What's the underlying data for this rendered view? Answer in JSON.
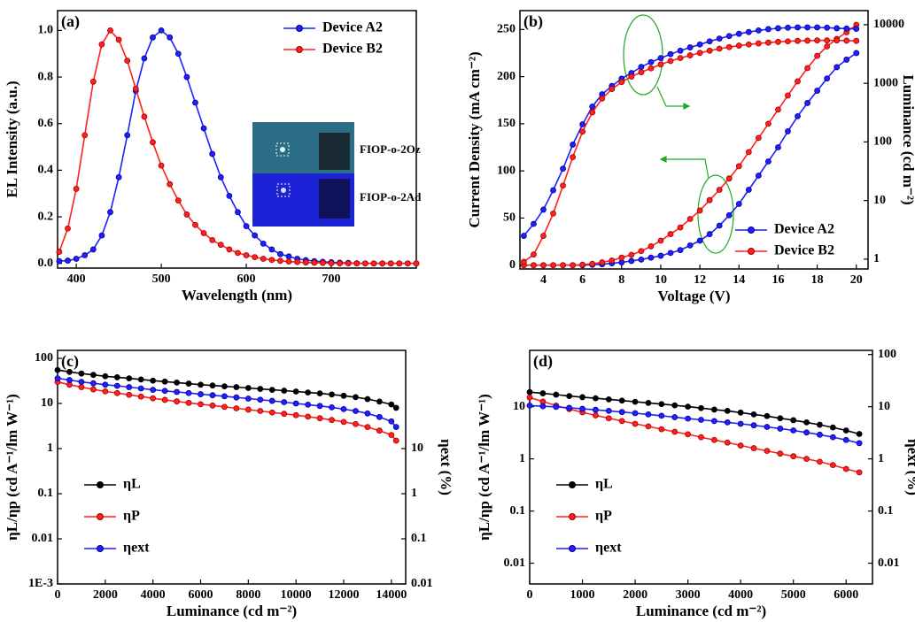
{
  "chart_data": [
    {
      "type": "line",
      "label": "(a)",
      "x_label": "Wavelength (nm)",
      "y_label": "EL Intensity (a.u.)",
      "annotations": [
        "FIOP-o-2Oz",
        "FIOP-o-2Ad"
      ],
      "legend": "upper right",
      "x": [
        380,
        390,
        400,
        410,
        420,
        430,
        440,
        450,
        460,
        470,
        480,
        490,
        500,
        510,
        520,
        530,
        540,
        550,
        560,
        570,
        580,
        590,
        600,
        610,
        620,
        630,
        640,
        650,
        660,
        670,
        680,
        690,
        700,
        710,
        720,
        730,
        740,
        750,
        760,
        770,
        780,
        790,
        800
      ],
      "series": [
        {
          "name": "Device A2",
          "color": "#1f1fff",
          "values": [
            0.01,
            0.012,
            0.02,
            0.035,
            0.06,
            0.12,
            0.22,
            0.37,
            0.55,
            0.74,
            0.88,
            0.97,
            1.0,
            0.97,
            0.9,
            0.8,
            0.69,
            0.58,
            0.47,
            0.37,
            0.29,
            0.22,
            0.16,
            0.12,
            0.085,
            0.06,
            0.04,
            0.03,
            0.02,
            0.014,
            0.01,
            0.007,
            0.005,
            0.003,
            0.002,
            0.001,
            0,
            0,
            0,
            0,
            0,
            0,
            0
          ]
        },
        {
          "name": "Device B2",
          "color": "#ff2020",
          "values": [
            0.05,
            0.15,
            0.32,
            0.55,
            0.78,
            0.94,
            1.0,
            0.96,
            0.87,
            0.75,
            0.63,
            0.52,
            0.42,
            0.34,
            0.27,
            0.21,
            0.165,
            0.13,
            0.1,
            0.08,
            0.06,
            0.045,
            0.035,
            0.027,
            0.02,
            0.015,
            0.011,
            0.008,
            0.006,
            0.004,
            0.003,
            0.002,
            0.001,
            0,
            0,
            0,
            0,
            0,
            0,
            0,
            0,
            0,
            0
          ]
        }
      ],
      "xlim": [
        378,
        800
      ],
      "xticks": [
        400,
        500,
        600,
        700
      ],
      "ylim": [
        -0.02,
        1.085
      ],
      "yticks": [
        {
          "value": 0,
          "label": "0.0"
        },
        0.2,
        0.4,
        0.6,
        0.8,
        {
          "value": 1,
          "label": "1.0"
        }
      ]
    },
    {
      "type": "line",
      "label": "(b)",
      "x_label": "Voltage (V)",
      "y_label": "Current Density (mA cm⁻²)",
      "y2_label": "Luminance (cd m⁻²)",
      "legend": "lower right",
      "x": [
        3,
        3.5,
        4,
        4.5,
        5,
        5.5,
        6,
        6.5,
        7,
        7.5,
        8,
        8.5,
        9,
        9.5,
        10,
        10.5,
        11,
        11.5,
        12,
        12.5,
        13,
        13.5,
        14,
        14.5,
        15,
        15.5,
        16,
        16.5,
        17,
        17.5,
        18,
        18.5,
        19,
        19.5,
        20
      ],
      "series": [
        {
          "name": "Device A2",
          "color": "#1f1fff",
          "values": [
            0,
            0,
            0,
            0,
            0,
            0,
            0,
            0.5,
            1,
            2,
            3,
            4.5,
            6,
            8,
            10,
            13,
            16,
            21,
            26,
            33,
            42,
            53,
            65,
            80,
            95,
            110,
            125,
            142,
            158,
            172,
            185,
            198,
            210,
            218,
            225
          ]
        },
        {
          "name": "Device B2",
          "color": "#ff2020",
          "values": [
            0,
            0,
            0,
            0,
            0,
            0,
            0.5,
            1.5,
            3,
            5,
            8,
            11,
            15,
            20,
            26,
            33,
            40,
            49,
            58,
            69,
            80,
            92,
            105,
            120,
            135,
            150,
            165,
            180,
            195,
            209,
            222,
            232,
            240,
            247,
            255
          ]
        },
        {
          "color": "#1f1fff",
          "axis": "y2",
          "values": [
            2.5,
            4,
            7,
            15,
            35,
            90,
            200,
            400,
            650,
            900,
            1200,
            1500,
            1900,
            2300,
            2700,
            3150,
            3600,
            4100,
            4600,
            5200,
            5800,
            6400,
            7000,
            7500,
            8000,
            8400,
            8700,
            8900,
            9000,
            9000,
            9000,
            8900,
            8700,
            8600,
            8500
          ]
        },
        {
          "color": "#ff2020",
          "axis": "y2",
          "values": [
            0.9,
            1.2,
            2.5,
            6,
            18,
            55,
            150,
            320,
            550,
            800,
            1050,
            1300,
            1550,
            1800,
            2100,
            2400,
            2700,
            3000,
            3300,
            3600,
            3900,
            4150,
            4400,
            4600,
            4800,
            4950,
            5100,
            5200,
            5300,
            5350,
            5400,
            5400,
            5400,
            5350,
            5300
          ]
        }
      ],
      "xlim": [
        2.8,
        20.6
      ],
      "xticks": [
        4,
        6,
        8,
        10,
        12,
        14,
        16,
        18,
        20
      ],
      "ylim": [
        -4,
        270
      ],
      "yticks": [
        0,
        50,
        100,
        150,
        200,
        250
      ],
      "y2lim": [
        0.68,
        17400
      ],
      "y2ticks": [
        1,
        10,
        100,
        1000,
        10000
      ],
      "y2_log": true
    },
    {
      "type": "line",
      "label": "(c)",
      "x_label": "Luminance (cd m⁻²)",
      "y_label": "ηL/ηp (cd A⁻¹/lm W⁻¹)",
      "y2_label": "ηext (%)",
      "legend": "lower left",
      "x": [
        0,
        500,
        1000,
        1500,
        2000,
        2500,
        3000,
        3500,
        4000,
        4500,
        5000,
        5500,
        6000,
        6500,
        7000,
        7500,
        8000,
        8500,
        9000,
        9500,
        10000,
        10500,
        11000,
        11500,
        12000,
        12500,
        13000,
        13500,
        14000,
        14200
      ],
      "series": [
        {
          "name": "ηL",
          "color": "#000000",
          "values": [
            55,
            50,
            46,
            43,
            40,
            38,
            36,
            34,
            32,
            30.5,
            29,
            27.5,
            26,
            25,
            24,
            23,
            22,
            21,
            20,
            19.2,
            18.4,
            17.5,
            16.7,
            15.8,
            14.8,
            13.8,
            12.5,
            11,
            9.5,
            8
          ]
        },
        {
          "name": "ηP",
          "color": "#ff2020",
          "values": [
            30,
            26,
            23,
            20.5,
            18.5,
            17,
            15.5,
            14.2,
            13,
            12,
            11.1,
            10.3,
            9.6,
            9,
            8.4,
            7.8,
            7.3,
            6.8,
            6.3,
            5.9,
            5.5,
            5.1,
            4.7,
            4.3,
            3.9,
            3.5,
            3.0,
            2.5,
            2.0,
            1.5
          ]
        },
        {
          "name": "ηext",
          "color": "#1f1fff",
          "axis": "y2",
          "values": [
            360,
            330,
            300,
            280,
            260,
            245,
            230,
            215,
            200,
            190,
            180,
            170,
            160,
            152,
            144,
            136,
            128,
            121,
            114,
            107,
            100,
            94,
            88,
            82,
            75,
            68,
            60,
            50,
            40,
            30
          ]
        }
      ],
      "xlim": [
        0,
        14600
      ],
      "xticks": [
        0,
        2000,
        4000,
        6000,
        8000,
        10000,
        12000,
        14000
      ],
      "ylim": [
        0.001,
        150
      ],
      "yticks": [
        {
          "value": 0.001,
          "label": "1E-3"
        },
        0.01,
        0.1,
        1,
        10,
        100
      ],
      "y_log": true,
      "y2lim": [
        0.01,
        1500
      ],
      "y2ticks": [
        0.01,
        0.1,
        1,
        10
      ],
      "y2_log": true
    },
    {
      "type": "line",
      "label": "(d)",
      "x_label": "Luminance (cd m⁻²)",
      "y_label": "ηL/ηp (cd A⁻¹/lm W⁻¹)",
      "y2_label": "ηext (%)",
      "legend": "lower left",
      "x": [
        0,
        250,
        500,
        750,
        1000,
        1250,
        1500,
        1750,
        2000,
        2250,
        2500,
        2750,
        3000,
        3250,
        3500,
        3750,
        4000,
        4250,
        4500,
        4750,
        5000,
        5250,
        5500,
        5750,
        6000,
        6250
      ],
      "series": [
        {
          "name": "ηL",
          "color": "#000000",
          "values": [
            19,
            18,
            17,
            16,
            15.2,
            14.5,
            13.8,
            13.1,
            12.4,
            11.8,
            11.2,
            10.6,
            10,
            9.4,
            8.8,
            8.3,
            7.7,
            7.1,
            6.6,
            6.0,
            5.5,
            5.0,
            4.5,
            4.0,
            3.5,
            3.0
          ]
        },
        {
          "name": "ηP",
          "color": "#ff2020",
          "values": [
            15,
            12.5,
            10.5,
            9,
            7.8,
            6.8,
            6.0,
            5.3,
            4.7,
            4.2,
            3.7,
            3.3,
            2.95,
            2.6,
            2.3,
            2.05,
            1.8,
            1.6,
            1.42,
            1.26,
            1.12,
            1.0,
            0.88,
            0.76,
            0.64,
            0.55
          ]
        },
        {
          "name": "ηext",
          "color": "#1f1fff",
          "axis": "y2",
          "values": [
            10.5,
            10.2,
            9.9,
            9.5,
            9.1,
            8.7,
            8.3,
            7.9,
            7.5,
            7.1,
            6.7,
            6.3,
            5.9,
            5.6,
            5.3,
            5.0,
            4.7,
            4.4,
            4.1,
            3.8,
            3.5,
            3.2,
            2.9,
            2.6,
            2.3,
            2.0
          ]
        }
      ],
      "xlim": [
        0,
        6500
      ],
      "xticks": [
        0,
        1000,
        2000,
        3000,
        4000,
        5000,
        6000
      ],
      "ylim": [
        0.004,
        120
      ],
      "yticks": [
        0.01,
        0.1,
        1,
        10
      ],
      "y_log": true,
      "y2lim": [
        0.004,
        120
      ],
      "y2ticks": [
        0.01,
        0.1,
        1,
        10,
        100
      ],
      "y2_log": true
    }
  ]
}
